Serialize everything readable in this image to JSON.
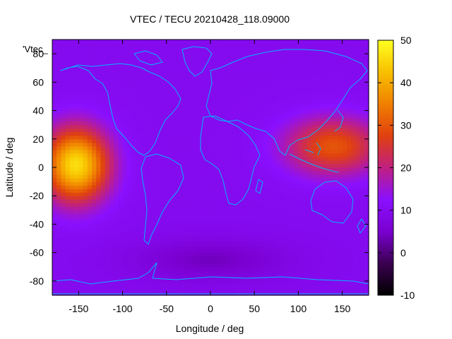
{
  "chart_data": {
    "type": "heatmap",
    "title": "VTEC / TECU 20210428_118.09000",
    "xlabel": "Longitude / deg",
    "ylabel": "Latitude / deg",
    "series_label": "'Vtec_",
    "xlim": [
      -180,
      180
    ],
    "ylim": [
      -90,
      90
    ],
    "x_ticks": [
      -150,
      -100,
      -50,
      0,
      50,
      100,
      150
    ],
    "y_ticks": [
      -80,
      -60,
      -40,
      -20,
      0,
      20,
      40,
      60,
      80
    ],
    "colorbar": {
      "range": [
        -10,
        50
      ],
      "ticks": [
        -10,
        0,
        10,
        20,
        30,
        40,
        50
      ],
      "colormap": [
        "#000000",
        "#3a0050",
        "#7a00d0",
        "#8a10ff",
        "#c02080",
        "#e04010",
        "#f08000",
        "#f8c000",
        "#ffff20"
      ]
    },
    "features": [
      {
        "name": "pacific-peak",
        "lon": -153,
        "lat": 2,
        "value": 46
      },
      {
        "name": "asia-pacific-band",
        "lon": 140,
        "lat": 15,
        "value": 30
      },
      {
        "name": "background",
        "value": 10
      },
      {
        "name": "southern-trough",
        "lon": 0,
        "lat": -65,
        "value": 4
      }
    ],
    "grid": false,
    "overlay": "coastlines",
    "overlay_color": "#00b4ff"
  }
}
